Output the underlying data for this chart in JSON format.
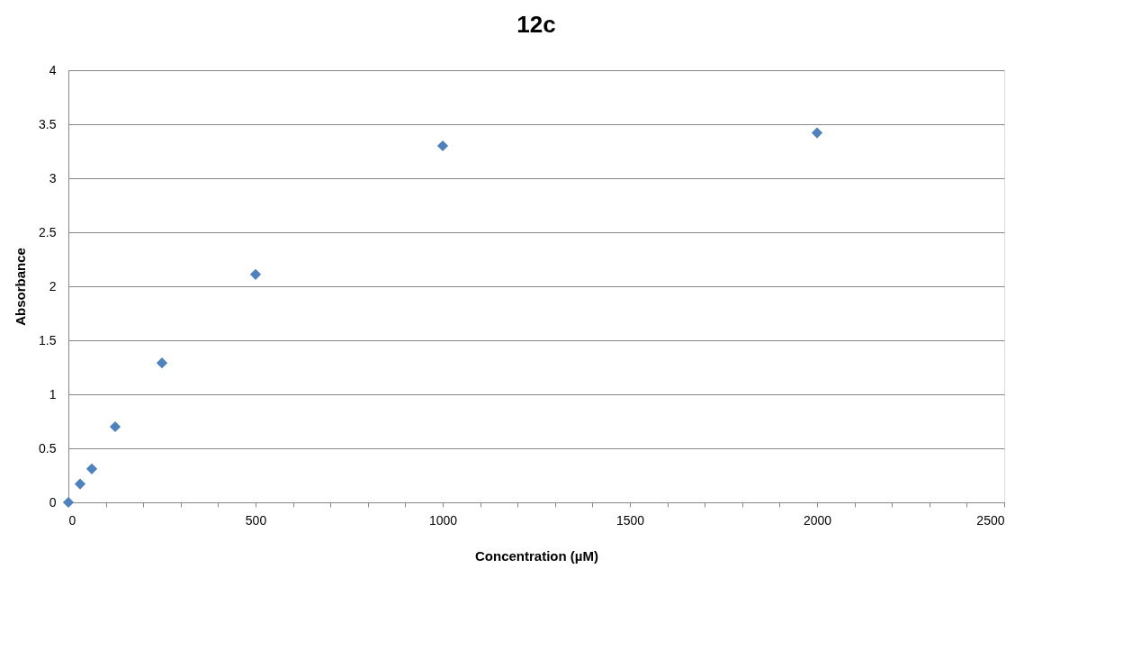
{
  "chart_data": {
    "type": "scatter",
    "title": "12c",
    "xlabel": "Concentration (µM)",
    "ylabel": "Absorbance",
    "x": [
      0,
      31.25,
      62.5,
      125,
      250,
      500,
      1000,
      2000
    ],
    "series": [
      {
        "color": "#4f81bd",
        "values": [
          0,
          0.17,
          0.31,
          0.7,
          1.29,
          2.11,
          3.3,
          3.42
        ]
      }
    ],
    "marker": "diamond",
    "grid": "y",
    "legend": false,
    "xlim": [
      0,
      2500
    ],
    "xticks": [
      0,
      {
        "value": 100,
        "label": null
      },
      {
        "value": 200,
        "label": null
      },
      {
        "value": 300,
        "label": null
      },
      {
        "value": 400,
        "label": null
      },
      500,
      {
        "value": 600,
        "label": null
      },
      {
        "value": 700,
        "label": null
      },
      {
        "value": 800,
        "label": null
      },
      {
        "value": 900,
        "label": null
      },
      1000,
      {
        "value": 1100,
        "label": null
      },
      {
        "value": 1200,
        "label": null
      },
      {
        "value": 1300,
        "label": null
      },
      {
        "value": 1400,
        "label": null
      },
      1500,
      {
        "value": 1600,
        "label": null
      },
      {
        "value": 1700,
        "label": null
      },
      {
        "value": 1800,
        "label": null
      },
      {
        "value": 1900,
        "label": null
      },
      2000,
      {
        "value": 2100,
        "label": null
      },
      {
        "value": 2200,
        "label": null
      },
      {
        "value": 2300,
        "label": null
      },
      {
        "value": 2400,
        "label": null
      },
      2500
    ],
    "ylim": [
      0,
      4
    ],
    "yticks": [
      0,
      0.5,
      1,
      1.5,
      2,
      2.5,
      3,
      3.5,
      4
    ]
  }
}
